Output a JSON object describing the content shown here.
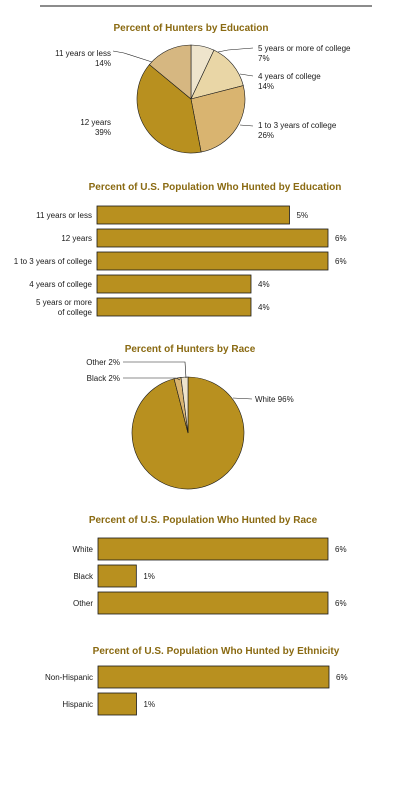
{
  "colors": {
    "title": "#8a6a12",
    "bar": "#b8901f",
    "rule": "#1a1a1a",
    "pie_shades": [
      "#eee4cc",
      "#e9d6a6",
      "#d9b470",
      "#b8901f",
      "#d6b781"
    ]
  },
  "chart_data": [
    {
      "type": "pie",
      "title": "Percent of Hunters by Education",
      "slices": [
        {
          "label_lines": [
            "5 years or more of college",
            "7%"
          ],
          "value": 7
        },
        {
          "label_lines": [
            "4 years of college",
            "14%"
          ],
          "value": 14
        },
        {
          "label_lines": [
            "1 to 3 years of college",
            "26%"
          ],
          "value": 26
        },
        {
          "label_lines": [
            "12 years",
            "39%"
          ],
          "value": 39
        },
        {
          "label_lines": [
            "11 years or less",
            "14%"
          ],
          "value": 14
        }
      ]
    },
    {
      "type": "bar",
      "orientation": "horizontal",
      "title": "Percent of U.S. Population Who Hunted by Education",
      "categories": [
        [
          "11 years or less"
        ],
        [
          "12 years"
        ],
        [
          "1 to 3 years of college"
        ],
        [
          "4 years of college"
        ],
        [
          "5 years or more",
          "of college"
        ]
      ],
      "values": [
        5,
        6,
        6,
        4,
        4
      ],
      "value_labels": [
        "5%",
        "6%",
        "6%",
        "4%",
        "4%"
      ]
    },
    {
      "type": "pie",
      "title": "Percent of Hunters by Race",
      "slices": [
        {
          "label_lines": [
            "White 96%"
          ],
          "value": 96
        },
        {
          "label_lines": [
            "Black 2%"
          ],
          "value": 2
        },
        {
          "label_lines": [
            "Other 2%"
          ],
          "value": 2
        }
      ]
    },
    {
      "type": "bar",
      "orientation": "horizontal",
      "title": "Percent of U.S. Population Who Hunted by Race",
      "categories": [
        [
          "White"
        ],
        [
          "Black"
        ],
        [
          "Other"
        ]
      ],
      "values": [
        6,
        1,
        6
      ],
      "value_labels": [
        "6%",
        "1%",
        "6%"
      ]
    },
    {
      "type": "bar",
      "orientation": "horizontal",
      "title": "Percent of U.S. Population Who Hunted by Ethnicity",
      "categories": [
        [
          "Non-Hispanic"
        ],
        [
          "Hispanic"
        ]
      ],
      "values": [
        6,
        1
      ],
      "value_labels": [
        "6%",
        "1%"
      ]
    }
  ]
}
